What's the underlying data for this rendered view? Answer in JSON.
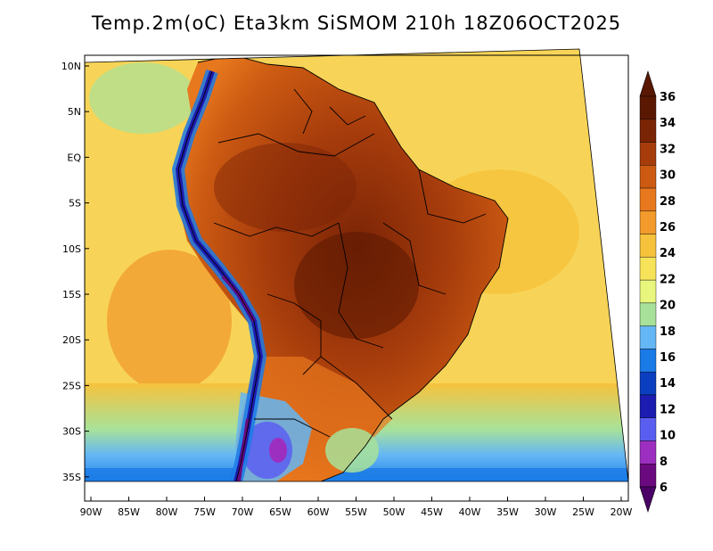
{
  "title": "Temp.2m(oC) Eta3km SiSMOM 210h 18Z06OCT2025",
  "map": {
    "variable": "2 m air temperature (°C)",
    "region": "South America",
    "lat_ticks": [
      "10N",
      "5N",
      "EQ",
      "5S",
      "10S",
      "15S",
      "20S",
      "25S",
      "30S",
      "35S"
    ],
    "lon_ticks": [
      "90W",
      "85W",
      "80W",
      "75W",
      "70W",
      "65W",
      "60W",
      "55W",
      "50W",
      "45W",
      "40W",
      "35W",
      "30W",
      "25W",
      "20W"
    ]
  },
  "colorbar": {
    "levels": [
      "6",
      "8",
      "10",
      "12",
      "14",
      "16",
      "18",
      "20",
      "22",
      "24",
      "26",
      "28",
      "30",
      "32",
      "34",
      "36"
    ],
    "colors": [
      "#6a0a7e",
      "#9d2fc0",
      "#5a5ef0",
      "#1d1cb0",
      "#0b3fbf",
      "#1a7ae6",
      "#64b6f5",
      "#a8e29a",
      "#e8f67e",
      "#f7e35a",
      "#f6c23c",
      "#f29b2c",
      "#e8781e",
      "#cc5a12",
      "#a63c0c",
      "#7a2406",
      "#5a1802"
    ],
    "arrow_low": "#4a0066",
    "arrow_high": "#5a1802"
  },
  "colors": {
    "ocean_warm": "#f6c23c",
    "ocean_mid": "#f29b2c",
    "land_hot": "#a63c0c",
    "land_very_hot": "#7a2406",
    "andes_cold": "#3b3fd0",
    "south_cold": "#1a7ae6",
    "frame": "#000000"
  }
}
